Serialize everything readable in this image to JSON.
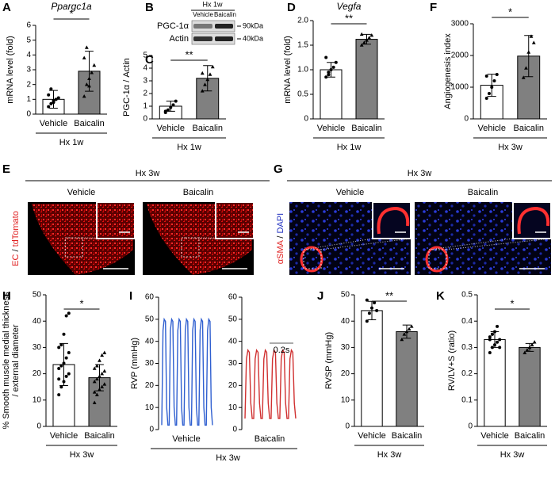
{
  "chart_data": [
    {
      "type": "bar",
      "panel": "A",
      "title": "Ppargc1a",
      "ylabel": [
        "mRNA level (fold)"
      ],
      "categories": [
        "Vehicle",
        "Baicalin"
      ],
      "group": "Hx 1w",
      "values": [
        1.0,
        2.9
      ],
      "errors": [
        0.6,
        1.35
      ],
      "points": [
        [
          0.5,
          0.7,
          0.9,
          1.0,
          1.1,
          1.3,
          1.7,
          0.8
        ],
        [
          1.2,
          2.0,
          2.4,
          2.8,
          3.3,
          3.8,
          4.5,
          1.9
        ]
      ],
      "ylim": [
        0,
        6
      ],
      "yticks": [
        0,
        1,
        2,
        3,
        4,
        5,
        6
      ],
      "significance": "*",
      "colors": [
        "#ffffff",
        "#808080"
      ]
    },
    {
      "type": "blot",
      "panel": "B",
      "group": "Hx 1w",
      "categories": [
        "Vehicle",
        "Baicalin"
      ],
      "rows": [
        "PGC-1α",
        "Actin"
      ],
      "markers": [
        "90kDa",
        "40kDa"
      ]
    },
    {
      "type": "bar",
      "panel": "C",
      "ylabel": [
        "PGC-1α / Actin"
      ],
      "categories": [
        "Vehicle",
        "Baicalin"
      ],
      "group": "Hx 1w",
      "values": [
        1.0,
        3.2
      ],
      "errors": [
        0.4,
        1.0
      ],
      "points": [
        [
          0.5,
          0.7,
          0.9,
          1.1,
          1.4,
          0.6
        ],
        [
          2.2,
          2.7,
          3.1,
          3.5,
          4.1,
          3.6
        ]
      ],
      "ylim": [
        0,
        5
      ],
      "yticks": [
        0,
        1,
        2,
        3,
        4,
        5
      ],
      "significance": "**",
      "colors": [
        "#ffffff",
        "#808080"
      ]
    },
    {
      "type": "bar",
      "panel": "D",
      "title": "Vegfa",
      "ylabel": [
        "mRNA level (fold)"
      ],
      "categories": [
        "Vehicle",
        "Baicalin"
      ],
      "group": "Hx 1w",
      "values": [
        1.0,
        1.62
      ],
      "errors": [
        0.15,
        0.1
      ],
      "points": [
        [
          0.85,
          0.95,
          1.0,
          1.05,
          1.15,
          1.25,
          0.9
        ],
        [
          1.5,
          1.55,
          1.6,
          1.65,
          1.7,
          1.72
        ]
      ],
      "ylim": [
        0,
        2
      ],
      "yticks": [
        0,
        0.5,
        {
          "value": 1,
          "label": "1.0"
        },
        1.5,
        {
          "value": 2,
          "label": "2.0"
        }
      ],
      "significance": "**",
      "colors": [
        "#ffffff",
        "#808080"
      ]
    },
    {
      "type": "bar",
      "panel": "F",
      "ylabel": [
        "Angiogenesis index"
      ],
      "categories": [
        "Vehicle",
        "Baicalin"
      ],
      "group": "Hx 3w",
      "values": [
        1060,
        1980
      ],
      "errors": [
        350,
        650
      ],
      "points": [
        [
          650,
          800,
          1000,
          1200,
          1400,
          1350
        ],
        [
          1300,
          1600,
          2100,
          2600,
          2400
        ]
      ],
      "ylim": [
        0,
        3000
      ],
      "yticks": [
        0,
        1000,
        2000,
        3000
      ],
      "significance": "*",
      "colors": [
        "#ffffff",
        "#808080"
      ]
    },
    {
      "type": "image",
      "panel": "E",
      "group": "Hx 3w",
      "categories": [
        "Vehicle",
        "Baicalin"
      ],
      "stains": [
        {
          "text": "EC",
          "color": "#e02020"
        },
        {
          "text": "tdTomato",
          "color": "#e02020"
        }
      ],
      "separator": " / ",
      "style": "vessel"
    },
    {
      "type": "image",
      "panel": "G",
      "group": "Hx 3w",
      "categories": [
        "Vehicle",
        "Baicalin"
      ],
      "stains": [
        {
          "text": "αSMA",
          "color": "#e02020"
        },
        {
          "text": "DAPI",
          "color": "#2030c0"
        }
      ],
      "separator": " / ",
      "style": "ring"
    },
    {
      "type": "bar",
      "panel": "H",
      "ylabel": [
        "% Smooth muscle medial thickness",
        "/ external diameter"
      ],
      "categories": [
        "Vehicle",
        "Baicalin"
      ],
      "group": "Hx 3w",
      "values": [
        23.5,
        18.5
      ],
      "errors": [
        8,
        5
      ],
      "points": [
        [
          12,
          15,
          17,
          19,
          20,
          22,
          23,
          24,
          26,
          28,
          30,
          31,
          35,
          42,
          43,
          18
        ],
        [
          9,
          12,
          14,
          15,
          16,
          17,
          18,
          19,
          20,
          21,
          22,
          23,
          25,
          27,
          28,
          13
        ]
      ],
      "ylim": [
        0,
        50
      ],
      "yticks": [
        0,
        10,
        20,
        30,
        40,
        50
      ],
      "significance": "*",
      "colors": [
        "#ffffff",
        "#808080"
      ]
    },
    {
      "type": "line",
      "panel": "I",
      "ylabel": "RVP (mmHg)",
      "group": "Hx 3w",
      "ylim": [
        0,
        60
      ],
      "yticks": [
        0,
        10,
        20,
        30,
        40,
        50,
        60
      ],
      "annotation": "0.2s",
      "series": [
        {
          "name": "Vehicle",
          "color": "#2f5fd0",
          "values": [
            2,
            45,
            50,
            49,
            10,
            2,
            2,
            45,
            50,
            49,
            10,
            2,
            2,
            45,
            50,
            49,
            10,
            2,
            2,
            45,
            50,
            49,
            10,
            2,
            2,
            45,
            50,
            49,
            10,
            2,
            2,
            45,
            50,
            49,
            10,
            2,
            2,
            45,
            50,
            49,
            10,
            2
          ]
        },
        {
          "name": "Baicalin",
          "color": "#d03030",
          "values": [
            5,
            32,
            36,
            35,
            12,
            5,
            5,
            32,
            36,
            35,
            12,
            5,
            5,
            32,
            36,
            35,
            12,
            5,
            5,
            32,
            36,
            35,
            12,
            5,
            5,
            32,
            36,
            35,
            12,
            5,
            5,
            32,
            36,
            35,
            12,
            5
          ]
        }
      ]
    },
    {
      "type": "bar",
      "panel": "J",
      "ylabel": [
        "RVSP (mmHg)"
      ],
      "categories": [
        "Vehicle",
        "Baicalin"
      ],
      "group": "Hx 3w",
      "values": [
        44,
        36
      ],
      "errors": [
        3.5,
        2.5
      ],
      "points": [
        [
          40,
          43,
          45,
          47,
          44,
          48
        ],
        [
          33,
          35,
          36,
          37,
          38
        ]
      ],
      "ylim": [
        0,
        50
      ],
      "yticks": [
        0,
        10,
        20,
        30,
        40,
        50
      ],
      "significance": "**",
      "colors": [
        "#ffffff",
        "#808080"
      ]
    },
    {
      "type": "bar",
      "panel": "K",
      "ylabel": [
        "RV/LV+S (ratio)"
      ],
      "categories": [
        "Vehicle",
        "Baicalin"
      ],
      "group": "Hx 3w",
      "values": [
        0.33,
        0.3
      ],
      "errors": [
        0.03,
        0.015
      ],
      "points": [
        [
          0.28,
          0.3,
          0.31,
          0.32,
          0.33,
          0.34,
          0.35,
          0.36,
          0.38,
          0.3,
          0.33,
          0.35
        ],
        [
          0.28,
          0.29,
          0.3,
          0.31,
          0.32
        ]
      ],
      "ylim": [
        0,
        0.5
      ],
      "yticks": [
        0,
        0.1,
        0.2,
        0.3,
        0.4,
        0.5
      ],
      "significance": "*",
      "colors": [
        "#ffffff",
        "#808080"
      ]
    }
  ]
}
